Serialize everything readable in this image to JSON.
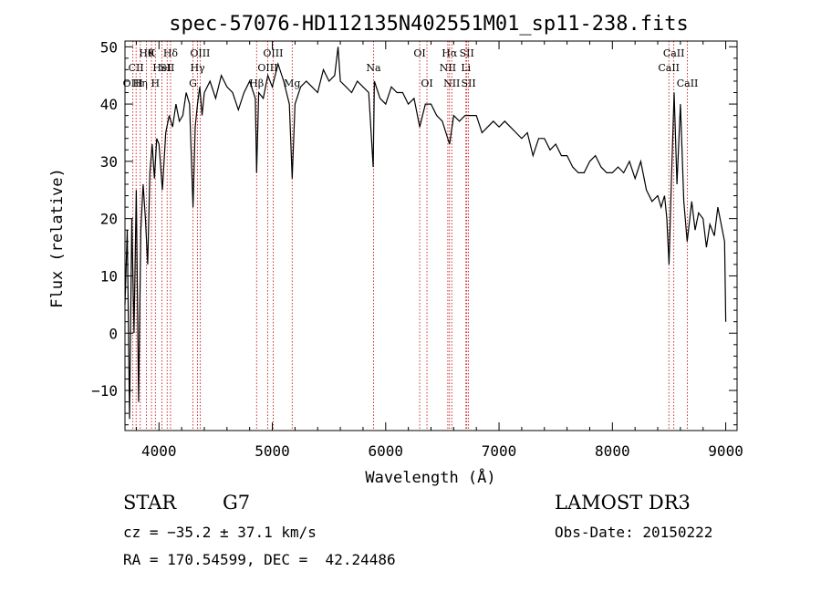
{
  "chart_data": {
    "type": "line",
    "title": "spec-57076-HD112135N402551M01_sp11-238.fits",
    "xlabel": "Wavelength (Å)",
    "ylabel": "Flux (relative)",
    "xlim": [
      3700,
      9100
    ],
    "ylim": [
      -17,
      51
    ],
    "x_ticks": [
      4000,
      5000,
      6000,
      7000,
      8000,
      9000
    ],
    "x_tick_labels": [
      "4000",
      "5000",
      "6000",
      "7000",
      "8000",
      "9000"
    ],
    "y_ticks": [
      -10,
      0,
      10,
      20,
      30,
      40,
      50
    ],
    "y_tick_labels": [
      "−10",
      "0",
      "10",
      "20",
      "30",
      "40",
      "50"
    ],
    "grid": false,
    "series": [
      {
        "x": [
          3700,
          3720,
          3740,
          3760,
          3780,
          3800,
          3820,
          3840,
          3860,
          3880,
          3900,
          3920,
          3940,
          3960,
          3980,
          4000,
          4030,
          4060,
          4090,
          4120,
          4150,
          4180,
          4210,
          4240,
          4270,
          4300,
          4320,
          4340,
          4360,
          4380,
          4400,
          4450,
          4500,
          4550,
          4600,
          4650,
          4700,
          4750,
          4800,
          4850,
          4861,
          4880,
          4920,
          4960,
          5000,
          5050,
          5100,
          5150,
          5175,
          5200,
          5250,
          5300,
          5350,
          5400,
          5450,
          5500,
          5550,
          5580,
          5600,
          5650,
          5700,
          5750,
          5800,
          5850,
          5890,
          5900,
          5950,
          6000,
          6050,
          6100,
          6150,
          6200,
          6250,
          6300,
          6350,
          6400,
          6450,
          6500,
          6563,
          6600,
          6650,
          6700,
          6750,
          6800,
          6850,
          6900,
          6950,
          7000,
          7050,
          7100,
          7150,
          7200,
          7250,
          7300,
          7350,
          7400,
          7450,
          7500,
          7550,
          7600,
          7650,
          7700,
          7750,
          7800,
          7850,
          7900,
          7950,
          8000,
          8050,
          8100,
          8150,
          8200,
          8250,
          8300,
          8350,
          8400,
          8430,
          8460,
          8480,
          8500,
          8520,
          8545,
          8570,
          8600,
          8630,
          8660,
          8700,
          8730,
          8760,
          8800,
          8830,
          8860,
          8900,
          8930,
          8960,
          8990,
          9000
        ],
        "values": [
          5,
          18,
          -15,
          20,
          0,
          25,
          -12,
          18,
          26,
          20,
          12,
          28,
          33,
          27,
          34,
          33,
          25,
          35,
          38,
          36,
          40,
          37,
          38,
          42,
          40,
          22,
          36,
          40,
          43,
          38,
          42,
          44,
          41,
          45,
          43,
          42,
          39,
          42,
          44,
          41,
          28,
          42,
          41,
          45,
          43,
          47,
          44,
          40,
          27,
          40,
          43,
          44,
          43,
          42,
          46,
          44,
          45,
          50,
          44,
          43,
          42,
          44,
          43,
          42,
          29,
          44,
          41,
          40,
          43,
          42,
          42,
          40,
          41,
          36,
          40,
          40,
          38,
          37,
          33,
          38,
          37,
          38,
          38,
          38,
          35,
          36,
          37,
          36,
          37,
          36,
          35,
          34,
          35,
          31,
          34,
          34,
          32,
          33,
          31,
          31,
          29,
          28,
          28,
          30,
          31,
          29,
          28,
          28,
          29,
          28,
          30,
          27,
          30,
          25,
          23,
          24,
          22,
          24,
          20,
          12,
          26,
          42,
          26,
          40,
          23,
          16,
          23,
          18,
          21,
          20,
          15,
          19,
          17,
          22,
          19,
          16,
          2
        ]
      }
    ],
    "line_markers": [
      {
        "wavelength": 3770,
        "label": "OIII",
        "row": 3
      },
      {
        "wavelength": 3798,
        "label": "CII",
        "row": 2
      },
      {
        "wavelength": 3835,
        "label": "Hη",
        "row": 3
      },
      {
        "wavelength": 3889,
        "label": "Hθ",
        "row": 1
      },
      {
        "wavelength": 3934,
        "label": "K",
        "row": 1
      },
      {
        "wavelength": 3968,
        "label": "H",
        "row": 3
      },
      {
        "wavelength": 4026,
        "label": "HeI",
        "row": 2
      },
      {
        "wavelength": 4072,
        "label": "SII",
        "row": 2
      },
      {
        "wavelength": 4102,
        "label": "Hδ",
        "row": 1
      },
      {
        "wavelength": 4300,
        "label": "G",
        "row": 3
      },
      {
        "wavelength": 4340,
        "label": "Hγ",
        "row": 2
      },
      {
        "wavelength": 4363,
        "label": "OIII",
        "row": 1
      },
      {
        "wavelength": 4861,
        "label": "Hβ",
        "row": 3
      },
      {
        "wavelength": 4959,
        "label": "OIII",
        "row": 2
      },
      {
        "wavelength": 5007,
        "label": "OIII",
        "row": 1
      },
      {
        "wavelength": 5175,
        "label": "Mg",
        "row": 3
      },
      {
        "wavelength": 5893,
        "label": "Na",
        "row": 2
      },
      {
        "wavelength": 6300,
        "label": "OI",
        "row": 1
      },
      {
        "wavelength": 6364,
        "label": "OI",
        "row": 3
      },
      {
        "wavelength": 6548,
        "label": "NII",
        "row": 2
      },
      {
        "wavelength": 6563,
        "label": "Hα",
        "row": 1
      },
      {
        "wavelength": 6583,
        "label": "NII",
        "row": 3
      },
      {
        "wavelength": 6708,
        "label": "Li",
        "row": 2
      },
      {
        "wavelength": 6716,
        "label": "SII",
        "row": 1
      },
      {
        "wavelength": 6731,
        "label": "SII",
        "row": 3
      },
      {
        "wavelength": 8498,
        "label": "CaII",
        "row": 2
      },
      {
        "wavelength": 8542,
        "label": "CaII",
        "row": 1
      },
      {
        "wavelength": 8662,
        "label": "CaII",
        "row": 3
      }
    ],
    "colors": {
      "spectrum": "#000000",
      "marker_line": "#c00000",
      "axes": "#000000"
    }
  },
  "info": {
    "object_type": "STAR",
    "subclass": "G7",
    "survey": "LAMOST DR3",
    "redshift": "cz = −35.2 ± 37.1 km/s",
    "obs_date": "Obs-Date: 20150222",
    "coords": "RA = 170.54599, DEC =  42.24486"
  }
}
